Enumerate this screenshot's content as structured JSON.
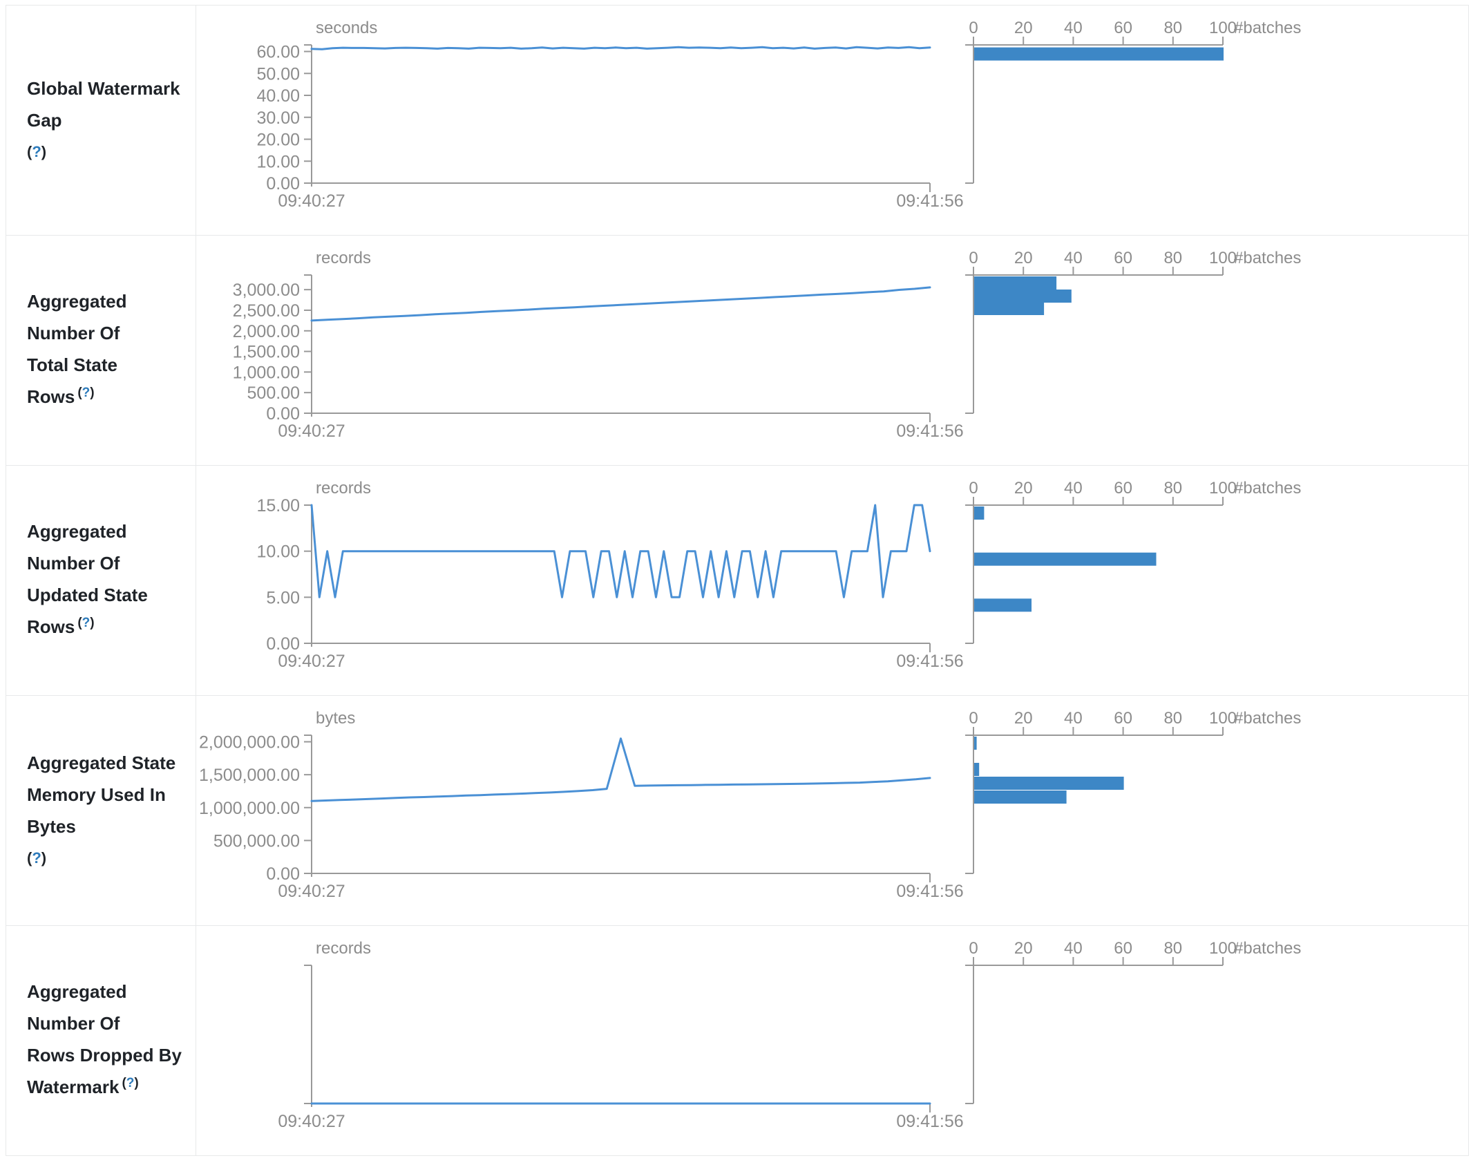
{
  "help": {
    "open": "(",
    "mark": "?",
    "close": ")"
  },
  "colors": {
    "line": "#4a90d5",
    "bar": "#3d87c6",
    "axis": "#999999",
    "tick_text": "#8c8c8c",
    "label_text": "#1f2328",
    "help_link": "#2d7bbb",
    "border": "#e7e9ea"
  },
  "metrics": [
    {
      "label_lines": [
        "Global Watermark Gap"
      ],
      "help_inline": false
    },
    {
      "label_lines": [
        "Aggregated Number Of",
        "Total State Rows"
      ],
      "help_inline": true
    },
    {
      "label_lines": [
        "Aggregated Number Of",
        "Updated State Rows"
      ],
      "help_inline": true
    },
    {
      "label_lines": [
        "Aggregated State",
        "Memory Used In Bytes"
      ],
      "help_inline": false
    },
    {
      "label_lines": [
        "Aggregated Number Of",
        "Rows Dropped By",
        "Watermark"
      ],
      "help_inline": true
    }
  ],
  "chart_data": [
    {
      "timeline": {
        "type": "line",
        "unit": "seconds",
        "x_start": "09:40:27",
        "x_end": "09:41:56",
        "y_domain_max": 63,
        "y_ticks": [
          {
            "v": 0,
            "label": "0.00"
          },
          {
            "v": 10,
            "label": "10.00"
          },
          {
            "v": 20,
            "label": "20.00"
          },
          {
            "v": 30,
            "label": "30.00"
          },
          {
            "v": 40,
            "label": "40.00"
          },
          {
            "v": 50,
            "label": "50.00"
          },
          {
            "v": 60,
            "label": "60.00"
          }
        ],
        "values": [
          61.2,
          61.0,
          61.5,
          61.7,
          61.6,
          61.6,
          61.5,
          61.4,
          61.6,
          61.7,
          61.6,
          61.5,
          61.3,
          61.6,
          61.5,
          61.3,
          61.7,
          61.6,
          61.5,
          61.7,
          61.3,
          61.5,
          61.8,
          61.4,
          61.7,
          61.5,
          61.3,
          61.7,
          61.5,
          61.8,
          61.5,
          61.7,
          61.3,
          61.5,
          61.7,
          62.0,
          61.7,
          61.8,
          61.7,
          61.5,
          61.8,
          61.5,
          61.7,
          62.0,
          61.5,
          61.7,
          61.4,
          61.8,
          61.3,
          61.6,
          61.8,
          61.4,
          62.0,
          61.7,
          61.4,
          61.8,
          61.6,
          62.0,
          61.5,
          61.8
        ]
      },
      "histogram": {
        "type": "bar",
        "unit": "#batches",
        "x_ticks": [
          {
            "v": 0,
            "label": "0"
          },
          {
            "v": 20,
            "label": "20"
          },
          {
            "v": 40,
            "label": "40"
          },
          {
            "v": 60,
            "label": "60"
          },
          {
            "v": 80,
            "label": "80"
          },
          {
            "v": 100,
            "label": "100"
          }
        ],
        "x_max": 100,
        "value_domain_max": 62,
        "bars": [
          {
            "value": 61.5,
            "count": 100
          }
        ]
      }
    },
    {
      "timeline": {
        "type": "line",
        "unit": "records",
        "x_start": "09:40:27",
        "x_end": "09:41:56",
        "y_domain_max": 3355,
        "y_ticks": [
          {
            "v": 0,
            "label": "0.00"
          },
          {
            "v": 500,
            "label": "500.00"
          },
          {
            "v": 1000,
            "label": "1,000.00"
          },
          {
            "v": 1500,
            "label": "1,500.00"
          },
          {
            "v": 2000,
            "label": "2,000.00"
          },
          {
            "v": 2500,
            "label": "2,500.00"
          },
          {
            "v": 3000,
            "label": "3,000.00"
          }
        ],
        "values": [
          2250,
          2268,
          2285,
          2305,
          2327,
          2345,
          2362,
          2380,
          2402,
          2420,
          2438,
          2460,
          2478,
          2495,
          2515,
          2538,
          2555,
          2572,
          2592,
          2610,
          2628,
          2648,
          2668,
          2685,
          2705,
          2725,
          2742,
          2762,
          2780,
          2800,
          2820,
          2838,
          2858,
          2878,
          2895,
          2915,
          2938,
          2958,
          2995,
          3020,
          3055
        ]
      },
      "histogram": {
        "type": "bar",
        "unit": "#batches",
        "x_ticks": [
          {
            "v": 0,
            "label": "0"
          },
          {
            "v": 20,
            "label": "20"
          },
          {
            "v": 40,
            "label": "40"
          },
          {
            "v": 60,
            "label": "60"
          },
          {
            "v": 80,
            "label": "80"
          },
          {
            "v": 100,
            "label": "100"
          }
        ],
        "x_max": 100,
        "value_domain_max": 3055,
        "bars": [
          {
            "value": 3055,
            "count": 33
          },
          {
            "value": 2765,
            "count": 39
          },
          {
            "value": 2490,
            "count": 28
          }
        ]
      }
    },
    {
      "timeline": {
        "type": "line",
        "unit": "records",
        "x_start": "09:40:27",
        "x_end": "09:41:56",
        "y_domain_max": 15,
        "y_ticks": [
          {
            "v": 0,
            "label": "0.00"
          },
          {
            "v": 5,
            "label": "5.00"
          },
          {
            "v": 10,
            "label": "10.00"
          },
          {
            "v": 15,
            "label": "15.00"
          }
        ],
        "values": [
          15,
          5,
          10,
          5,
          10,
          10,
          10,
          10,
          10,
          10,
          10,
          10,
          10,
          10,
          10,
          10,
          10,
          10,
          10,
          10,
          10,
          10,
          10,
          10,
          10,
          10,
          10,
          10,
          10,
          10,
          10,
          10,
          5,
          10,
          10,
          10,
          5,
          10,
          10,
          5,
          10,
          5,
          10,
          10,
          5,
          10,
          5,
          5,
          10,
          10,
          5,
          10,
          5,
          10,
          5,
          10,
          10,
          5,
          10,
          5,
          10,
          10,
          10,
          10,
          10,
          10,
          10,
          10,
          5,
          10,
          10,
          10,
          15,
          5,
          10,
          10,
          10,
          15,
          15,
          10
        ]
      },
      "histogram": {
        "type": "bar",
        "unit": "#batches",
        "x_ticks": [
          {
            "v": 0,
            "label": "0"
          },
          {
            "v": 20,
            "label": "20"
          },
          {
            "v": 40,
            "label": "40"
          },
          {
            "v": 60,
            "label": "60"
          },
          {
            "v": 80,
            "label": "80"
          },
          {
            "v": 100,
            "label": "100"
          }
        ],
        "x_max": 100,
        "value_domain_max": 15,
        "bars": [
          {
            "value": 15,
            "count": 4
          },
          {
            "value": 10,
            "count": 73
          },
          {
            "value": 5,
            "count": 23
          }
        ]
      }
    },
    {
      "timeline": {
        "type": "line",
        "unit": "bytes",
        "x_start": "09:40:27",
        "x_end": "09:41:56",
        "y_domain_max": 2100000,
        "y_ticks": [
          {
            "v": 0,
            "label": "0.00"
          },
          {
            "v": 500000,
            "label": "500,000.00"
          },
          {
            "v": 1000000,
            "label": "1,000,000.00"
          },
          {
            "v": 1500000,
            "label": "1,500,000.00"
          },
          {
            "v": 2000000,
            "label": "2,000,000.00"
          }
        ],
        "values": [
          1100000,
          1108000,
          1115000,
          1122000,
          1130000,
          1138000,
          1147000,
          1155000,
          1160000,
          1168000,
          1175000,
          1183000,
          1190000,
          1198000,
          1205000,
          1213000,
          1222000,
          1230000,
          1240000,
          1252000,
          1265000,
          1285000,
          2050000,
          1330000,
          1335000,
          1338000,
          1340000,
          1342000,
          1345000,
          1347000,
          1350000,
          1352000,
          1355000,
          1357000,
          1360000,
          1363000,
          1366000,
          1370000,
          1375000,
          1380000,
          1390000,
          1400000,
          1415000,
          1430000,
          1450000
        ]
      },
      "histogram": {
        "type": "bar",
        "unit": "#batches",
        "x_ticks": [
          {
            "v": 0,
            "label": "0"
          },
          {
            "v": 20,
            "label": "20"
          },
          {
            "v": 40,
            "label": "40"
          },
          {
            "v": 60,
            "label": "60"
          },
          {
            "v": 80,
            "label": "80"
          },
          {
            "v": 100,
            "label": "100"
          }
        ],
        "x_max": 100,
        "value_domain_max": 2050000,
        "bars": [
          {
            "value": 2050000,
            "count": 1
          },
          {
            "value": 1660000,
            "count": 2
          },
          {
            "value": 1455000,
            "count": 60
          },
          {
            "value": 1250000,
            "count": 37
          }
        ]
      }
    },
    {
      "timeline": {
        "type": "line",
        "unit": "records",
        "x_start": "09:40:27",
        "x_end": "09:41:56",
        "y_domain_max": 1,
        "y_ticks": [],
        "values": [
          0,
          0,
          0,
          0,
          0,
          0,
          0,
          0,
          0,
          0,
          0,
          0,
          0,
          0,
          0,
          0,
          0,
          0,
          0,
          0
        ]
      },
      "histogram": {
        "type": "bar",
        "unit": "#batches",
        "x_ticks": [
          {
            "v": 0,
            "label": "0"
          },
          {
            "v": 20,
            "label": "20"
          },
          {
            "v": 40,
            "label": "40"
          },
          {
            "v": 60,
            "label": "60"
          },
          {
            "v": 80,
            "label": "80"
          },
          {
            "v": 100,
            "label": "100"
          }
        ],
        "x_max": 100,
        "value_domain_max": 1,
        "bars": []
      }
    }
  ]
}
